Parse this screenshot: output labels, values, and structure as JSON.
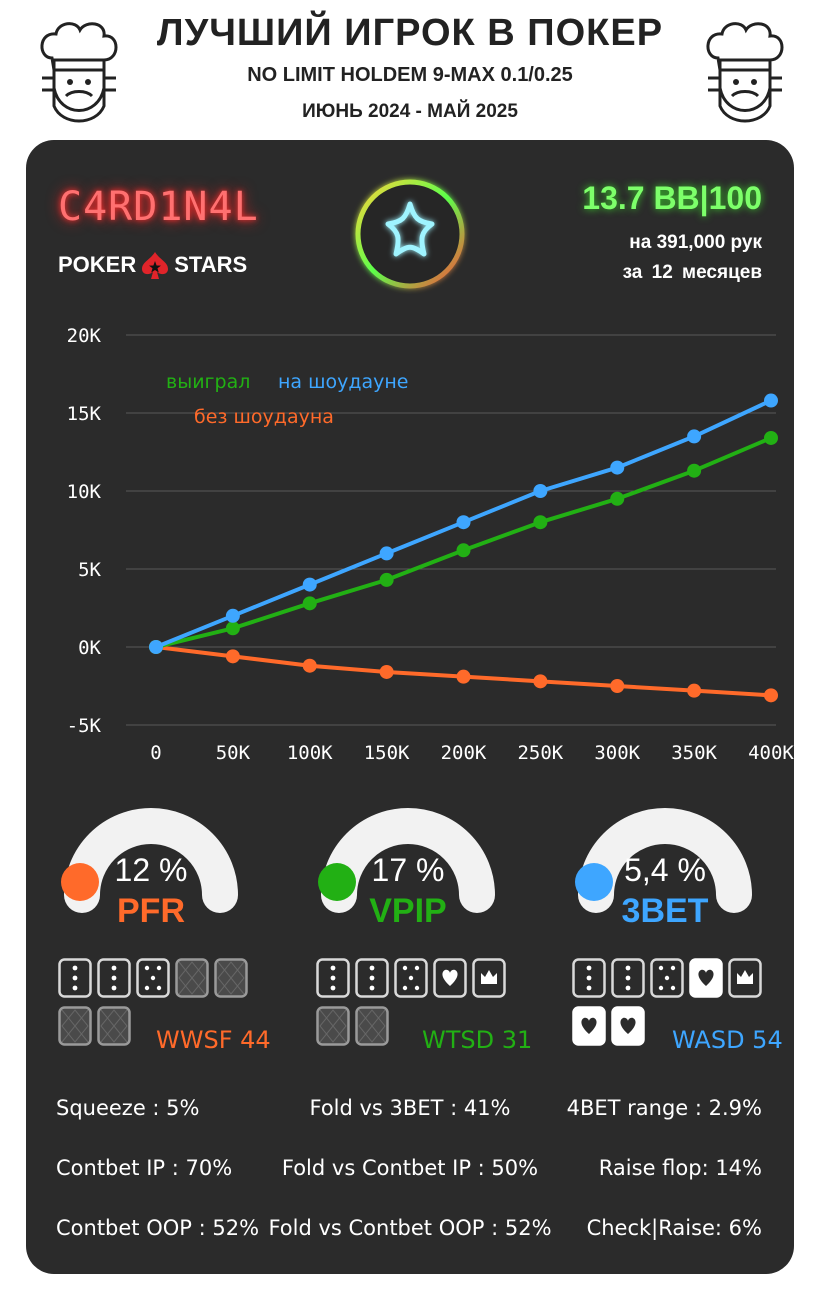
{
  "header": {
    "title": "ЛУЧШИЙ ИГРОК В ПОКЕР",
    "subtitle": "NO LIMIT HOLDEM 9-MAX 0.1/0.25",
    "period": "ИЮНЬ 2024 - МАЙ 2025"
  },
  "player": {
    "nickname": "C4RD1N4L",
    "room_logo_left": "POKER",
    "room_logo_right": "STARS",
    "winrate": "13.7 BB|100",
    "hands": "на 391,000 рук",
    "months": "за 12 месяцев"
  },
  "colors": {
    "orange": "#ff6a2a",
    "green": "#22b014",
    "blue": "#3ea6ff",
    "panel": "#2b2b2b"
  },
  "chart_data": {
    "type": "line",
    "x": [
      0,
      50000,
      100000,
      150000,
      200000,
      250000,
      300000,
      350000,
      400000
    ],
    "x_tick_labels": [
      "0",
      "50K",
      "100K",
      "150K",
      "200K",
      "250K",
      "300K",
      "350K",
      "400K"
    ],
    "y_tick_labels": [
      "20K",
      "15K",
      "10K",
      "5K",
      "0K",
      "-5K"
    ],
    "y_ticks": [
      20000,
      15000,
      10000,
      5000,
      0,
      -5000
    ],
    "ylim": [
      -5000,
      20000
    ],
    "xlim": [
      0,
      400000
    ],
    "grid": true,
    "legend_position": "top-left",
    "series": [
      {
        "name": "выиграл",
        "color": "#22b014",
        "values": [
          0,
          1200,
          2800,
          4300,
          6200,
          8000,
          9500,
          11300,
          13400
        ]
      },
      {
        "name": "на шоудауне",
        "color": "#3ea6ff",
        "values": [
          0,
          2000,
          4000,
          6000,
          8000,
          10000,
          11500,
          13500,
          15800
        ]
      },
      {
        "name": "без шоудауна",
        "color": "#ff6a2a",
        "values": [
          0,
          -600,
          -1200,
          -1600,
          -1900,
          -2200,
          -2500,
          -2800,
          -3100
        ]
      }
    ]
  },
  "gauges": [
    {
      "value": "12 %",
      "label": "PFR",
      "color": "#ff6a2a",
      "fraction": 0.0
    },
    {
      "value": "17 %",
      "label": "VPIP",
      "color": "#22b014",
      "fraction": 0.0
    },
    {
      "value": "5,4 %",
      "label": "3BET",
      "color": "#3ea6ff",
      "fraction": 0.0
    }
  ],
  "card_stats": [
    {
      "label": "WWSF 44",
      "color": "#ff6a2a"
    },
    {
      "label": "WTSD 31",
      "color": "#22b014"
    },
    {
      "label": "WASD 54",
      "color": "#3ea6ff"
    }
  ],
  "stats": {
    "left": [
      "Squeeze : 5%",
      "Contbet IP : 70%",
      "Contbet OOP : 52%"
    ],
    "middle": [
      "Fold vs 3BET : 41%",
      "Fold vs Contbet IP : 50%",
      "Fold vs Contbet OOP : 52%"
    ],
    "right": [
      "4BET range : 2.9%",
      "Raise flop: 14%",
      "Check|Raise: 6%"
    ]
  }
}
